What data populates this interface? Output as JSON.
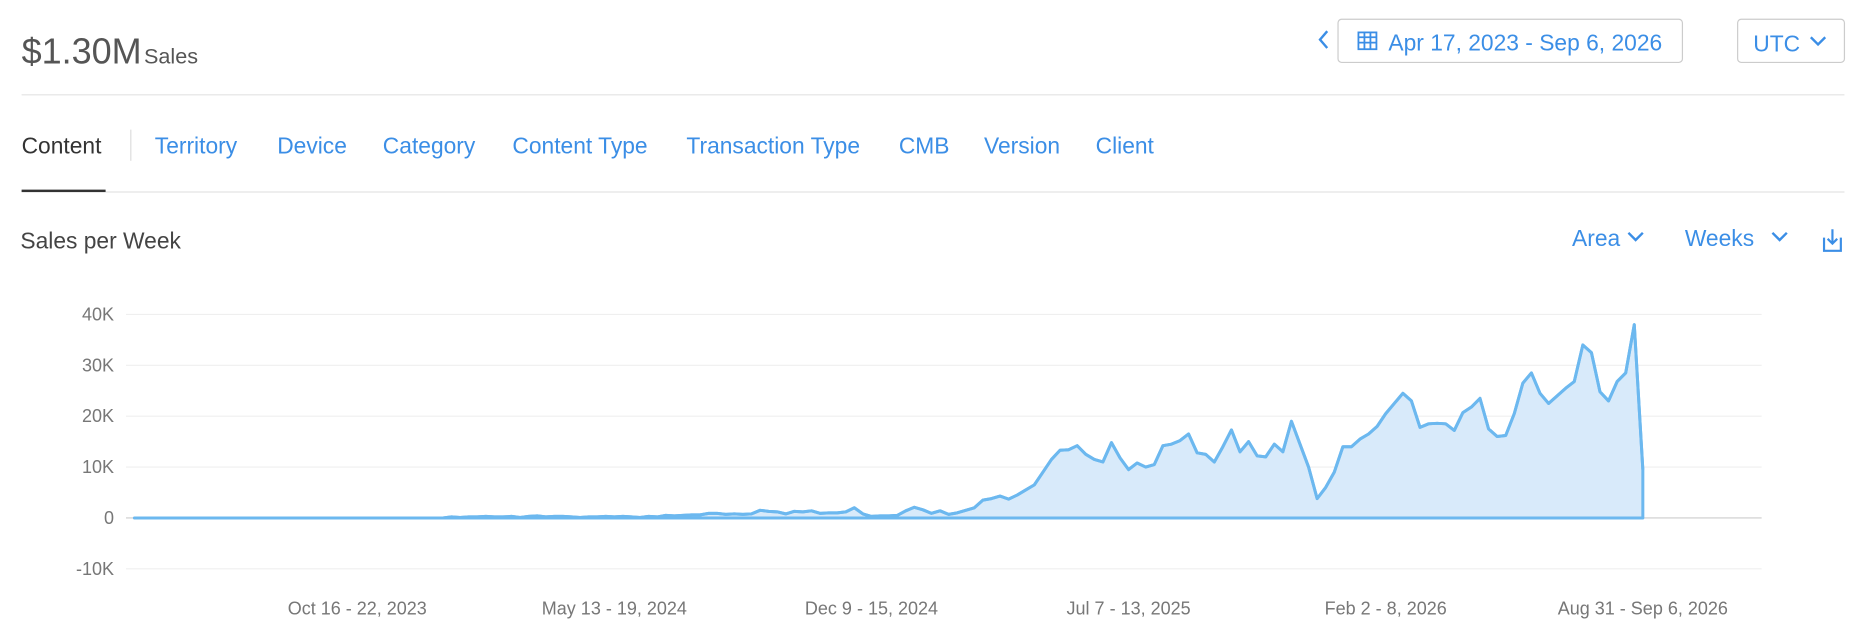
{
  "header": {
    "total": "$1.30M",
    "total_label": "Sales",
    "date_range": "Apr 17, 2023 - Sep 6, 2026",
    "timezone": "UTC"
  },
  "tabs": [
    "Content",
    "Territory",
    "Device",
    "Category",
    "Content Type",
    "Transaction Type",
    "CMB",
    "Version",
    "Client"
  ],
  "controls": {
    "style": "Area",
    "period": "Weeks"
  },
  "chart_data": {
    "type": "area",
    "title": "Sales per Week",
    "categories": [
      null,
      null,
      null,
      null,
      null,
      null,
      null,
      null,
      null,
      null,
      null,
      null,
      null,
      null,
      null,
      null,
      null,
      null,
      null,
      null,
      null,
      null,
      null,
      null,
      null,
      null,
      "Oct 16 - 22, 2023",
      null,
      null,
      null,
      null,
      null,
      null,
      null,
      null,
      null,
      null,
      null,
      null,
      null,
      null,
      null,
      null,
      null,
      null,
      null,
      null,
      null,
      null,
      null,
      null,
      null,
      null,
      null,
      null,
      null,
      "May 13 - 19, 2024",
      null,
      null,
      null,
      null,
      null,
      null,
      null,
      null,
      null,
      null,
      null,
      null,
      null,
      null,
      null,
      null,
      null,
      null,
      null,
      null,
      null,
      null,
      null,
      null,
      null,
      null,
      null,
      null,
      null,
      "Dec 9 - 15, 2024",
      null,
      null,
      null,
      null,
      null,
      null,
      null,
      null,
      null,
      null,
      null,
      null,
      null,
      null,
      null,
      null,
      null,
      null,
      null,
      null,
      null,
      null,
      null,
      null,
      null,
      null,
      null,
      null,
      null,
      "Jul 7 - 13, 2025",
      null,
      null,
      null,
      null,
      null,
      null,
      null,
      null,
      null,
      null,
      null,
      null,
      null,
      null,
      null,
      null,
      null,
      null,
      null,
      null,
      null,
      null,
      null,
      null,
      null,
      null,
      null,
      null,
      null,
      "Feb 2 - 8, 2026",
      null,
      null,
      null,
      null,
      null,
      null,
      null,
      null,
      null,
      null,
      null,
      null,
      null,
      null,
      null,
      null,
      null,
      null,
      null,
      null,
      null,
      null,
      null,
      null,
      null,
      null,
      null,
      null,
      null,
      "Aug 31 - Sep 6, 2026"
    ],
    "series": [
      {
        "name": "Sales",
        "color": "#6cb8ef",
        "fill": "#d8eafa",
        "values": [
          0,
          0,
          0,
          0,
          0,
          0,
          0,
          0,
          0,
          0,
          0,
          0,
          0,
          0,
          0,
          0,
          0,
          0,
          0,
          0,
          0,
          0,
          0,
          0,
          0,
          0,
          0,
          0,
          0,
          0,
          0,
          0,
          0,
          0,
          0,
          0,
          0,
          200,
          100,
          200,
          200,
          300,
          200,
          200,
          300,
          100,
          300,
          400,
          200,
          300,
          300,
          200,
          100,
          200,
          200,
          300,
          200,
          300,
          200,
          100,
          300,
          200,
          500,
          400,
          500,
          600,
          600,
          900,
          900,
          700,
          800,
          700,
          800,
          1500,
          1300,
          1200,
          800,
          1300,
          1200,
          1400,
          900,
          1000,
          1000,
          1200,
          2000,
          800,
          300,
          400,
          400,
          500,
          1400,
          2100,
          1600,
          900,
          1400,
          700,
          1000,
          1500,
          2000,
          3500,
          3800,
          4300,
          3700,
          4500,
          5500,
          6500,
          9000,
          11500,
          13300,
          13400,
          14200,
          12500,
          11500,
          11000,
          14800,
          11800,
          9500,
          10800,
          10000,
          10500,
          14200,
          14500,
          15200,
          16500,
          12800,
          12500,
          11000,
          14000,
          17300,
          13000,
          15000,
          12200,
          12000,
          14500,
          13000,
          19000,
          14500,
          10000,
          3800,
          6000,
          9000,
          14000,
          14000,
          15500,
          16500,
          18000,
          20500,
          22500,
          24500,
          23000,
          17800,
          18500,
          18600,
          18500,
          17200,
          20700,
          21800,
          23500,
          17500,
          16000,
          16200,
          20500,
          26500,
          28500,
          24500,
          22500,
          24000,
          25500,
          26800,
          34000,
          32500,
          24800,
          23000,
          26800,
          28500,
          38000,
          9500
        ]
      }
    ],
    "ylim": [
      -10000,
      40000
    ],
    "yticks": [
      {
        "value": -10000,
        "label": "-10K"
      },
      0,
      {
        "value": 10000,
        "label": "10K"
      },
      {
        "value": 20000,
        "label": "20K"
      },
      {
        "value": 30000,
        "label": "30K"
      },
      {
        "value": 40000,
        "label": "40K"
      }
    ],
    "grid": true
  }
}
